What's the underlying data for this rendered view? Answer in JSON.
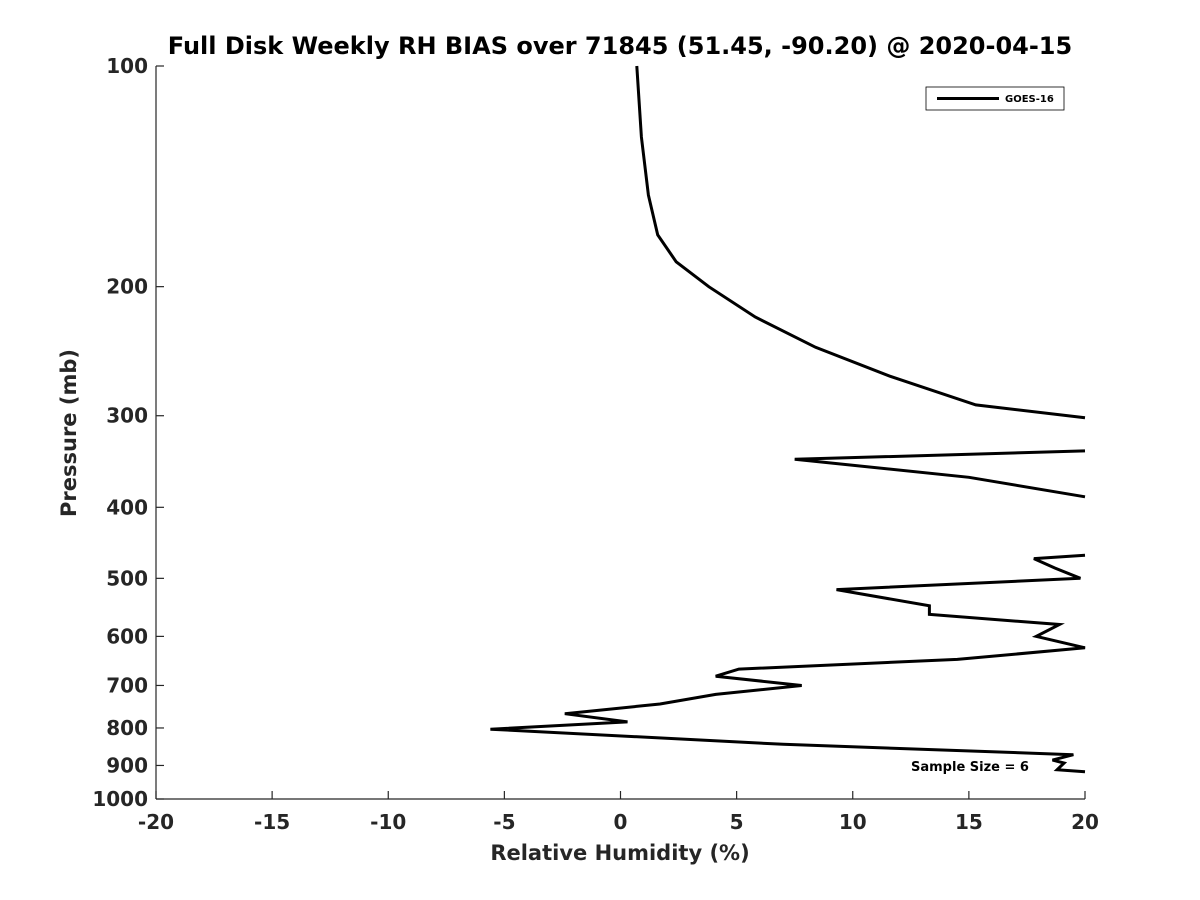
{
  "chart_data": {
    "type": "line",
    "title": "Full Disk Weekly RH BIAS over 71845 (51.45, -90.20) @ 2020-04-15",
    "xlabel": "Relative Humidity (%)",
    "ylabel": "Pressure (mb)",
    "xlim": [
      -20,
      20
    ],
    "ylim": [
      100,
      1000
    ],
    "y_scale": "log",
    "y_reversed": true,
    "x_ticks": [
      -20,
      -15,
      -10,
      -5,
      0,
      5,
      10,
      15,
      20
    ],
    "x_tick_labels": [
      "-20",
      "-15",
      "-10",
      "-5",
      "0",
      "5",
      "10",
      "15",
      "20"
    ],
    "y_ticks": [
      100,
      200,
      300,
      400,
      500,
      600,
      700,
      800,
      900,
      1000
    ],
    "y_tick_labels": [
      "100",
      "200",
      "300",
      "400",
      "500",
      "600",
      "700",
      "800",
      "900",
      "1000"
    ],
    "grid": false,
    "legend_position": "top-right",
    "series": [
      {
        "name": "GOES-16",
        "color": "#000000",
        "segments": [
          [
            {
              "x": 0.7,
              "p": 100
            },
            {
              "x": 0.9,
              "p": 125
            },
            {
              "x": 1.2,
              "p": 150
            },
            {
              "x": 1.6,
              "p": 170
            },
            {
              "x": 2.4,
              "p": 185
            },
            {
              "x": 3.8,
              "p": 200
            },
            {
              "x": 5.8,
              "p": 220
            },
            {
              "x": 8.4,
              "p": 242
            },
            {
              "x": 11.6,
              "p": 265
            },
            {
              "x": 15.3,
              "p": 290
            },
            {
              "x": 20.0,
              "p": 302
            }
          ],
          [
            {
              "x": 20.0,
              "p": 335
            },
            {
              "x": 7.5,
              "p": 344
            },
            {
              "x": 15.0,
              "p": 364
            },
            {
              "x": 20.0,
              "p": 387
            }
          ],
          [
            {
              "x": 20.0,
              "p": 465
            },
            {
              "x": 17.8,
              "p": 470
            },
            {
              "x": 18.7,
              "p": 484
            },
            {
              "x": 19.8,
              "p": 500
            },
            {
              "x": 9.3,
              "p": 518
            },
            {
              "x": 13.3,
              "p": 545
            },
            {
              "x": 13.3,
              "p": 560
            },
            {
              "x": 18.9,
              "p": 578
            },
            {
              "x": 17.9,
              "p": 600
            },
            {
              "x": 20.0,
              "p": 622
            },
            {
              "x": 14.5,
              "p": 645
            },
            {
              "x": 5.1,
              "p": 665
            },
            {
              "x": 4.1,
              "p": 680
            },
            {
              "x": 7.8,
              "p": 700
            },
            {
              "x": 4.1,
              "p": 720
            },
            {
              "x": 1.7,
              "p": 742
            },
            {
              "x": -2.4,
              "p": 765
            },
            {
              "x": 0.3,
              "p": 785
            },
            {
              "x": -5.6,
              "p": 803
            },
            {
              "x": 7.0,
              "p": 842
            },
            {
              "x": 19.5,
              "p": 870
            },
            {
              "x": 18.6,
              "p": 885
            },
            {
              "x": 19.1,
              "p": 893
            },
            {
              "x": 18.8,
              "p": 912
            },
            {
              "x": 20.0,
              "p": 918
            }
          ]
        ]
      }
    ],
    "annotation": "Sample Size = 6"
  }
}
